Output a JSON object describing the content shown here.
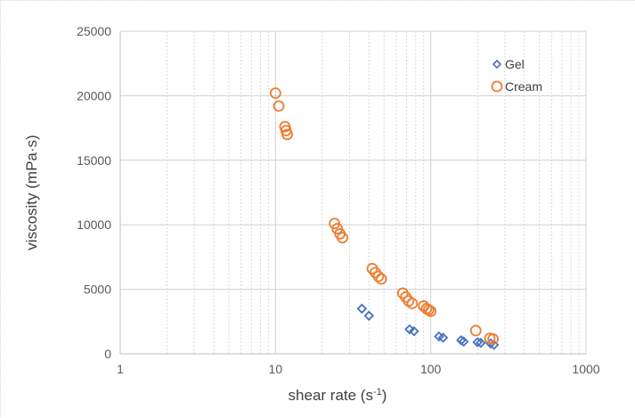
{
  "chart_data": {
    "type": "scatter",
    "title": "",
    "xlabel": "shear rate (s",
    "xlabel_sup": "-1",
    "xlabel_end": ")",
    "ylabel": "viscosity (mPa·s)",
    "xscale": "log",
    "xlim": [
      1,
      1000
    ],
    "ylim": [
      0,
      25000
    ],
    "x_ticks": [
      1,
      10,
      100,
      1000
    ],
    "x_tick_labels": [
      "1",
      "10",
      "100",
      "1000"
    ],
    "y_ticks": [
      0,
      5000,
      10000,
      15000,
      20000,
      25000
    ],
    "y_tick_labels": [
      "0",
      "5000",
      "10000",
      "15000",
      "20000",
      "25000"
    ],
    "grid": true,
    "legend_position": "top-right",
    "series": [
      {
        "name": "Gel",
        "marker": "diamond",
        "color": "#4472c4",
        "points": [
          [
            36,
            3500
          ],
          [
            40,
            2950
          ],
          [
            73,
            1900
          ],
          [
            78,
            1750
          ],
          [
            113,
            1350
          ],
          [
            120,
            1250
          ],
          [
            157,
            1050
          ],
          [
            163,
            950
          ],
          [
            200,
            900
          ],
          [
            210,
            850
          ],
          [
            243,
            800
          ],
          [
            255,
            700
          ]
        ]
      },
      {
        "name": "Cream",
        "marker": "circle",
        "color": "#ed7d31",
        "points": [
          [
            10.0,
            20200
          ],
          [
            10.5,
            19200
          ],
          [
            11.5,
            17600
          ],
          [
            11.7,
            17300
          ],
          [
            11.9,
            17000
          ],
          [
            24.0,
            10100
          ],
          [
            25.0,
            9700
          ],
          [
            26.0,
            9300
          ],
          [
            27.0,
            9000
          ],
          [
            42.0,
            6600
          ],
          [
            44.0,
            6300
          ],
          [
            46.0,
            6000
          ],
          [
            48.0,
            5800
          ],
          [
            66.0,
            4700
          ],
          [
            69.0,
            4400
          ],
          [
            72.0,
            4100
          ],
          [
            76.0,
            3900
          ],
          [
            90.0,
            3700
          ],
          [
            94.0,
            3500
          ],
          [
            97.0,
            3400
          ],
          [
            100.0,
            3300
          ],
          [
            195.0,
            1800
          ],
          [
            240.0,
            1200
          ],
          [
            252.0,
            1150
          ]
        ]
      }
    ]
  }
}
